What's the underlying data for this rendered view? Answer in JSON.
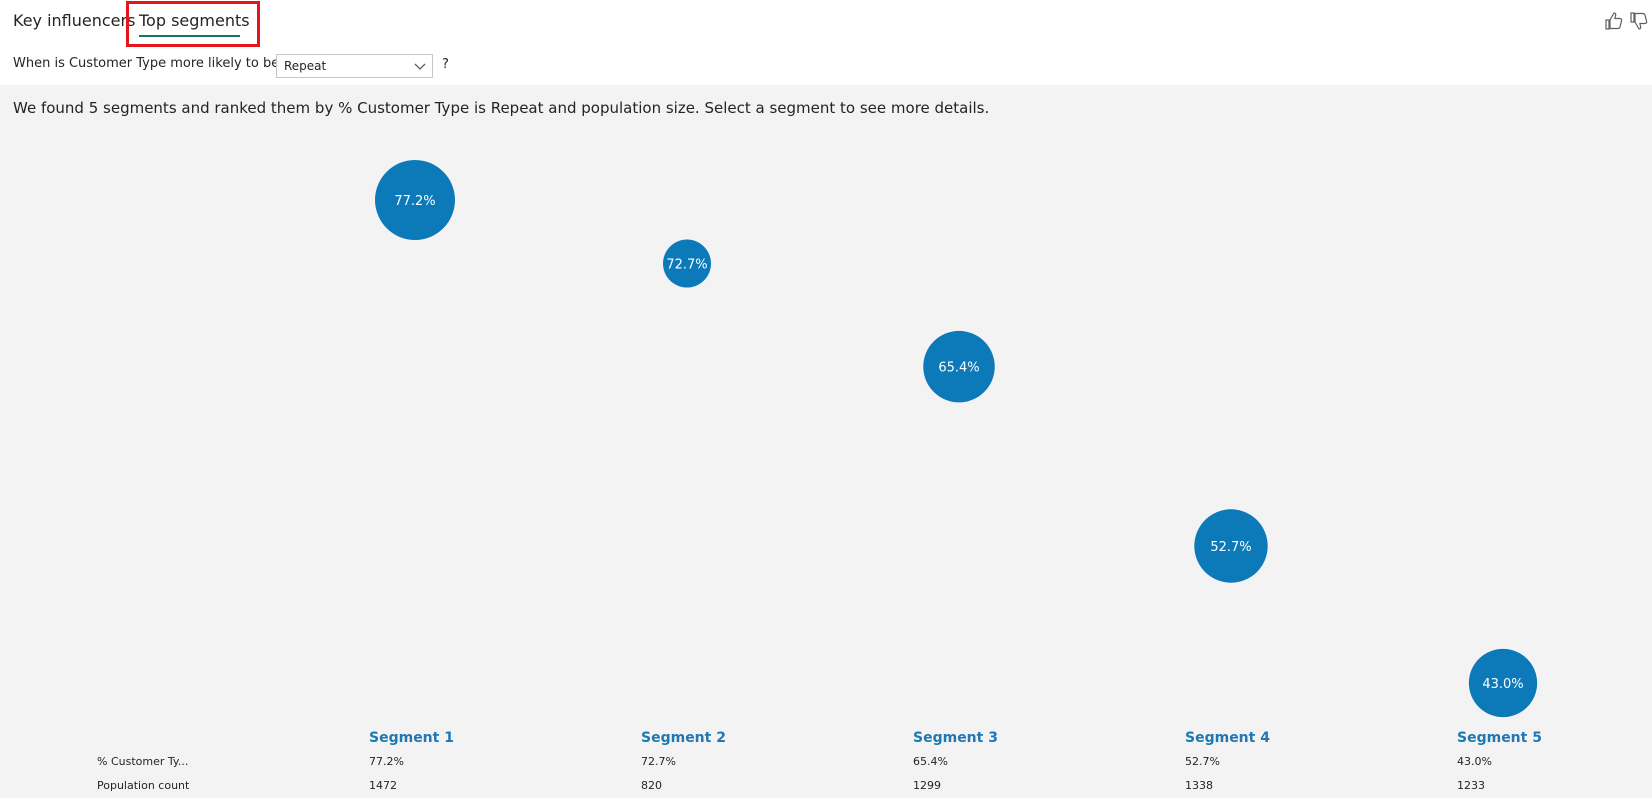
{
  "tabs": [
    {
      "label": "Key influencers"
    },
    {
      "label": "Top segments"
    }
  ],
  "question": {
    "label": "When is Customer Type more likely to be",
    "selected_value": "Repeat",
    "help": "?"
  },
  "summary": "We found 5 segments and ranked them by % Customer Type is Repeat and population size. Select a segment to see more details.",
  "colors": {
    "bubble": "#0c79b9",
    "segment_header": "#1f77b4",
    "highlight": "#e8141b",
    "panel_bg": "#f3f3f3"
  },
  "table": {
    "row_labels": [
      "% Customer Ty...",
      "Population count"
    ]
  },
  "chart_data": {
    "type": "scatter",
    "categories": [
      "Segment 1",
      "Segment 2",
      "Segment 3",
      "Segment 4",
      "Segment 5"
    ],
    "series": [
      {
        "name": "% Customer Type is Repeat",
        "values": [
          77.2,
          72.7,
          65.4,
          52.7,
          43.0
        ]
      },
      {
        "name": "Population count",
        "values": [
          1472,
          820,
          1299,
          1338,
          1233
        ]
      }
    ],
    "point_labels": [
      "77.2%",
      "72.7%",
      "65.4%",
      "52.7%",
      "43.0%"
    ],
    "population_labels": [
      "1472",
      "820",
      "1299",
      "1338",
      "1233"
    ],
    "ylim": [
      43.0,
      77.2
    ]
  }
}
